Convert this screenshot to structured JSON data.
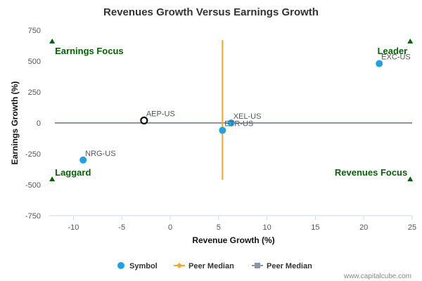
{
  "chart_data": {
    "type": "scatter",
    "title": "Revenues Growth Versus Earnings Growth",
    "xlabel": "Revenue Growth (%)",
    "ylabel": "Earnings Growth (%)",
    "xlim": [
      -12.5,
      25
    ],
    "ylim": [
      -750,
      750
    ],
    "x_ticks": [
      -10,
      -5,
      0,
      5,
      10,
      15,
      20,
      25
    ],
    "y_ticks": [
      -750,
      -500,
      -250,
      0,
      250,
      500,
      750
    ],
    "points": [
      {
        "label": "EXC-US",
        "x": 21.6,
        "y": 480,
        "style": "filled"
      },
      {
        "label": "XEL-US",
        "x": 6.3,
        "y": 0,
        "style": "filled"
      },
      {
        "label": "ETR-US",
        "x": 5.4,
        "y": -60,
        "style": "filled"
      },
      {
        "label": "NRG-US",
        "x": -9.0,
        "y": -300,
        "style": "filled"
      },
      {
        "label": "AEP-US",
        "x": -2.7,
        "y": 20,
        "style": "open"
      }
    ],
    "peer_median_x": 5.4,
    "peer_median_x_range": [
      -460,
      670
    ],
    "peer_median_y": 0,
    "quadrants": [
      {
        "label": "Earnings Focus",
        "marker_x": -12.2,
        "marker_y": 660
      },
      {
        "label": "Leader",
        "marker_x": 24.8,
        "marker_y": 660
      },
      {
        "label": "Laggard",
        "marker_x": -12.2,
        "marker_y": -455
      },
      {
        "label": "Revenues Focus",
        "marker_x": 24.8,
        "marker_y": -455
      }
    ],
    "legend": [
      {
        "label": "Symbol",
        "kind": "dot"
      },
      {
        "label": "Peer Median",
        "kind": "line-diamond"
      },
      {
        "label": "Peer Median",
        "kind": "line-square"
      }
    ],
    "legend_position": "bottom",
    "grid": false,
    "colors": {
      "point": "#1aa3e8",
      "open_point": "#111111",
      "peer_median_x": "#f5a623",
      "peer_median_y": "#8c94a5",
      "quadrant": "#006400",
      "axis": "#ccdde6"
    }
  },
  "credit": "www.capitalcube.com"
}
